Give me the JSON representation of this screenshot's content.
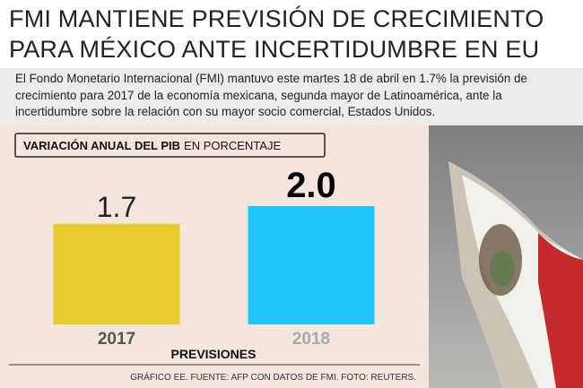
{
  "chart_data": {
    "type": "bar",
    "title": [
      "FMI MANTIENE PREVISIÓN DE CRECIMIENTO",
      "PARA MÉXICO ANTE INCERTIDUMBRE EN EU"
    ],
    "description": "El Fondo Monetario Internacional (FMI) mantuvo este martes 18 de abril en 1.7% la previsión de crecimiento para 2017 de la economía mexicana, segunda mayor de Latinoamérica, ante la incertidumbre sobre la relación con su mayor socio comercial, Estados Unidos.",
    "subtitle": "VARIACIÓN ANUAL DEL PIB",
    "unit": "EN PORCENTAJE",
    "categories": [
      "2017",
      "2018"
    ],
    "values": [
      1.7,
      2.0
    ],
    "value_labels": [
      "1.7",
      "2.0"
    ],
    "colors": [
      "#e8cb2c",
      "#1ec6f7"
    ],
    "x_label": "PREVISIONES",
    "source": "GRÁFICO EE. FUENTE: AFP CON DATOS DE FMI. FOTO: REUTERS."
  }
}
